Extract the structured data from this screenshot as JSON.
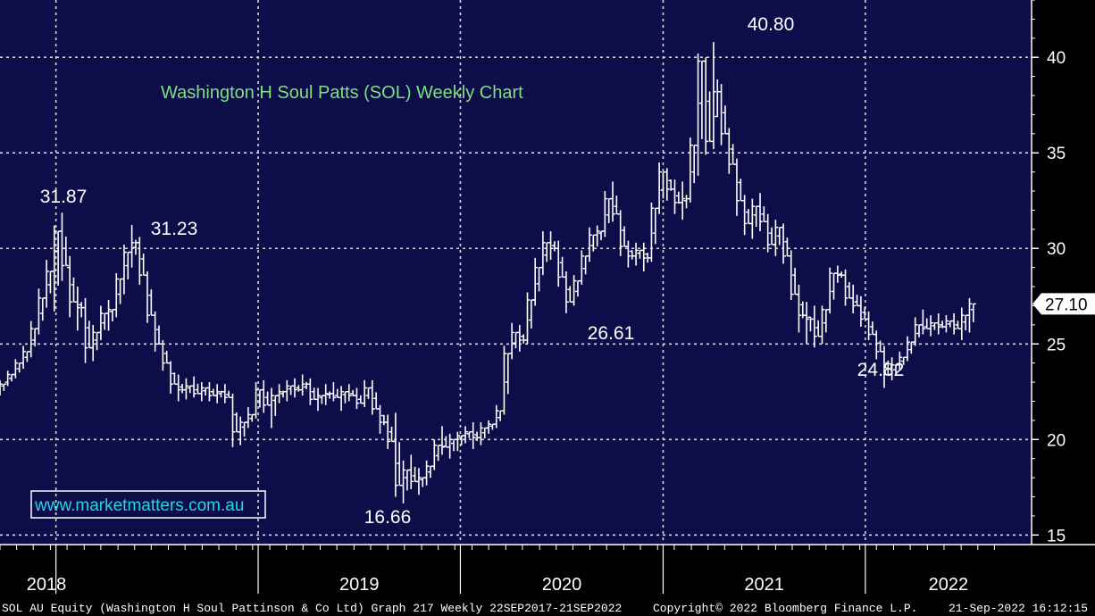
{
  "colors": {
    "plot_bg": "#0d0d4a",
    "grid": "#d8d8d8",
    "bars": "#ffffff",
    "title": "#7fe07f",
    "site": "#27d4e8",
    "axis_panel": "#000000"
  },
  "chart_data": {
    "type": "ohlc",
    "title": "Washington H Soul Patts (SOL) Weekly Chart",
    "xlabel": "",
    "ylabel": "",
    "x_start": "2017-09-22",
    "x_end": "2022-09-21",
    "ylim": [
      14.5,
      43
    ],
    "grid": true,
    "y_ticks": [
      15,
      20,
      25,
      30,
      35,
      40
    ],
    "x_years": [
      "2018",
      "2019",
      "2020",
      "2021",
      "2022"
    ],
    "year_starts": [
      "2018-01-01",
      "2019-01-01",
      "2020-01-01",
      "2021-01-01",
      "2022-01-01"
    ],
    "last_price": 27.1,
    "last_price_label": "27.10",
    "series": [
      {
        "values": [
          [
            "2017-09-22",
            22.7,
            23.1,
            22.3,
            22.9
          ],
          [
            "2017-10-06",
            23.0,
            23.6,
            22.8,
            23.4
          ],
          [
            "2017-10-20",
            23.4,
            24.2,
            23.2,
            24.0
          ],
          [
            "2017-11-03",
            24.0,
            24.9,
            23.7,
            24.6
          ],
          [
            "2017-11-17",
            24.6,
            26.2,
            24.3,
            25.8
          ],
          [
            "2017-12-01",
            25.8,
            27.9,
            25.5,
            27.4
          ],
          [
            "2017-12-15",
            27.4,
            29.4,
            26.9,
            28.8
          ],
          [
            "2017-12-29",
            28.8,
            31.2,
            26.7,
            30.9
          ],
          [
            "2018-01-12",
            30.9,
            31.87,
            28.3,
            29.1
          ],
          [
            "2018-01-26",
            29.0,
            29.6,
            26.4,
            27.2
          ],
          [
            "2018-02-09",
            27.2,
            28.0,
            25.7,
            26.9
          ],
          [
            "2018-02-23",
            26.9,
            27.4,
            24.0,
            24.8
          ],
          [
            "2018-03-09",
            24.8,
            26.0,
            24.1,
            25.6
          ],
          [
            "2018-03-23",
            25.6,
            27.0,
            25.2,
            26.6
          ],
          [
            "2018-04-06",
            26.6,
            27.3,
            25.7,
            26.8
          ],
          [
            "2018-04-20",
            26.8,
            28.7,
            26.4,
            28.4
          ],
          [
            "2018-05-04",
            28.4,
            30.2,
            27.6,
            29.8
          ],
          [
            "2018-05-18",
            29.8,
            31.23,
            29.0,
            30.3
          ],
          [
            "2018-06-01",
            30.3,
            30.6,
            28.1,
            28.6
          ],
          [
            "2018-06-15",
            28.6,
            28.8,
            26.1,
            26.5
          ],
          [
            "2018-06-29",
            26.5,
            26.7,
            24.6,
            25.0
          ],
          [
            "2018-07-13",
            25.0,
            25.2,
            23.6,
            24.0
          ],
          [
            "2018-07-27",
            24.0,
            24.1,
            22.4,
            22.9
          ],
          [
            "2018-08-10",
            22.9,
            23.4,
            22.0,
            22.6
          ],
          [
            "2018-08-24",
            22.6,
            23.2,
            22.1,
            22.8
          ],
          [
            "2018-09-07",
            22.8,
            23.3,
            22.2,
            22.4
          ],
          [
            "2018-09-21",
            22.4,
            23.0,
            22.0,
            22.7
          ],
          [
            "2018-10-05",
            22.7,
            23.0,
            22.0,
            22.3
          ],
          [
            "2018-10-19",
            22.3,
            22.9,
            21.9,
            22.5
          ],
          [
            "2018-11-02",
            22.5,
            22.9,
            21.9,
            22.2
          ],
          [
            "2018-11-16",
            22.2,
            22.4,
            19.6,
            20.4
          ],
          [
            "2018-11-30",
            20.4,
            21.2,
            19.7,
            20.9
          ],
          [
            "2018-12-14",
            20.9,
            21.7,
            20.6,
            21.3
          ],
          [
            "2018-12-28",
            21.3,
            23.0,
            21.1,
            22.6
          ],
          [
            "2019-01-11",
            22.6,
            23.1,
            21.4,
            21.8
          ],
          [
            "2019-01-25",
            21.8,
            22.7,
            20.6,
            22.3
          ],
          [
            "2019-02-08",
            22.3,
            22.9,
            21.9,
            22.5
          ],
          [
            "2019-02-22",
            22.5,
            23.1,
            22.0,
            22.8
          ],
          [
            "2019-03-08",
            22.8,
            23.2,
            22.2,
            22.6
          ],
          [
            "2019-03-22",
            22.6,
            23.4,
            22.3,
            22.9
          ],
          [
            "2019-04-05",
            22.9,
            23.2,
            21.8,
            22.1
          ],
          [
            "2019-04-19",
            22.1,
            22.7,
            21.5,
            22.3
          ],
          [
            "2019-05-03",
            22.3,
            22.9,
            21.8,
            22.4
          ],
          [
            "2019-05-17",
            22.4,
            23.0,
            22.0,
            22.2
          ],
          [
            "2019-05-31",
            22.2,
            22.8,
            21.5,
            22.5
          ],
          [
            "2019-06-14",
            22.5,
            22.9,
            22.0,
            22.3
          ],
          [
            "2019-06-28",
            22.3,
            22.7,
            21.6,
            21.9
          ],
          [
            "2019-07-12",
            21.9,
            23.1,
            21.7,
            22.7
          ],
          [
            "2019-07-26",
            22.7,
            23.1,
            21.3,
            21.6
          ],
          [
            "2019-08-09",
            21.6,
            21.8,
            20.3,
            20.9
          ],
          [
            "2019-08-23",
            20.9,
            21.3,
            19.5,
            19.9
          ],
          [
            "2019-09-06",
            19.9,
            21.4,
            17.0,
            17.6
          ],
          [
            "2019-09-20",
            17.6,
            18.9,
            16.66,
            18.4
          ],
          [
            "2019-10-04",
            18.4,
            19.2,
            17.4,
            17.8
          ],
          [
            "2019-10-18",
            17.8,
            18.5,
            17.1,
            18.0
          ],
          [
            "2019-11-01",
            18.0,
            18.9,
            17.6,
            18.6
          ],
          [
            "2019-11-15",
            18.6,
            20.0,
            18.4,
            19.7
          ],
          [
            "2019-11-29",
            19.7,
            20.7,
            19.2,
            19.6
          ],
          [
            "2019-12-13",
            19.6,
            20.3,
            19.0,
            20.0
          ],
          [
            "2019-12-27",
            20.0,
            20.4,
            19.4,
            20.2
          ],
          [
            "2020-01-10",
            20.2,
            20.7,
            19.8,
            20.4
          ],
          [
            "2020-01-24",
            20.4,
            20.9,
            19.5,
            20.1
          ],
          [
            "2020-02-07",
            20.1,
            20.9,
            19.7,
            20.6
          ],
          [
            "2020-02-21",
            20.6,
            21.0,
            20.3,
            20.8
          ],
          [
            "2020-03-06",
            20.8,
            21.8,
            20.6,
            21.5
          ],
          [
            "2020-03-20",
            21.5,
            24.9,
            21.3,
            24.5
          ],
          [
            "2020-04-03",
            24.5,
            26.1,
            24.2,
            25.6
          ],
          [
            "2020-04-17",
            25.6,
            26.0,
            24.6,
            25.2
          ],
          [
            "2020-05-01",
            25.2,
            27.7,
            25.0,
            27.3
          ],
          [
            "2020-05-15",
            27.3,
            29.5,
            27.0,
            29.0
          ],
          [
            "2020-05-29",
            29.0,
            30.9,
            28.6,
            30.3
          ],
          [
            "2020-06-12",
            30.3,
            30.9,
            29.4,
            30.0
          ],
          [
            "2020-06-26",
            30.0,
            30.4,
            28.0,
            28.5
          ],
          [
            "2020-07-10",
            28.5,
            28.8,
            26.61,
            27.2
          ],
          [
            "2020-07-24",
            27.2,
            28.6,
            27.0,
            28.3
          ],
          [
            "2020-08-07",
            28.3,
            29.9,
            28.1,
            29.6
          ],
          [
            "2020-08-21",
            29.6,
            31.1,
            29.3,
            30.7
          ],
          [
            "2020-09-04",
            30.7,
            31.2,
            30.1,
            30.9
          ],
          [
            "2020-09-18",
            30.9,
            33.0,
            30.6,
            32.6
          ],
          [
            "2020-10-02",
            32.6,
            33.5,
            31.4,
            31.8
          ],
          [
            "2020-10-16",
            31.8,
            32.0,
            29.6,
            30.1
          ],
          [
            "2020-10-30",
            30.1,
            30.4,
            29.0,
            29.6
          ],
          [
            "2020-11-13",
            29.6,
            30.3,
            29.1,
            29.9
          ],
          [
            "2020-11-27",
            29.9,
            30.3,
            28.8,
            29.5
          ],
          [
            "2020-12-11",
            29.5,
            32.4,
            29.3,
            32.1
          ],
          [
            "2020-12-25",
            32.1,
            34.5,
            31.8,
            34.0
          ],
          [
            "2021-01-08",
            34.0,
            34.2,
            32.5,
            33.1
          ],
          [
            "2021-01-22",
            33.1,
            33.6,
            31.8,
            32.4
          ],
          [
            "2021-02-05",
            32.4,
            33.5,
            31.5,
            32.6
          ],
          [
            "2021-02-19",
            32.6,
            35.8,
            32.4,
            35.4
          ],
          [
            "2021-03-05",
            35.4,
            40.2,
            33.8,
            39.8
          ],
          [
            "2021-03-19",
            39.8,
            40.0,
            34.9,
            35.6
          ],
          [
            "2021-04-02",
            35.6,
            40.8,
            35.2,
            38.2
          ],
          [
            "2021-04-16",
            38.2,
            38.6,
            35.4,
            36.0
          ],
          [
            "2021-04-30",
            36.0,
            36.3,
            33.9,
            34.4
          ],
          [
            "2021-05-14",
            34.4,
            34.7,
            31.7,
            32.5
          ],
          [
            "2021-05-28",
            32.5,
            32.8,
            30.7,
            31.3
          ],
          [
            "2021-06-11",
            31.3,
            32.6,
            30.5,
            32.2
          ],
          [
            "2021-06-25",
            32.2,
            32.9,
            30.9,
            31.4
          ],
          [
            "2021-07-09",
            31.4,
            31.8,
            29.8,
            30.2
          ],
          [
            "2021-07-23",
            30.2,
            31.5,
            29.6,
            31.1
          ],
          [
            "2021-08-06",
            31.1,
            31.3,
            29.2,
            29.6
          ],
          [
            "2021-08-20",
            29.6,
            29.9,
            27.3,
            27.6
          ],
          [
            "2021-09-03",
            27.6,
            28.1,
            25.6,
            26.5
          ],
          [
            "2021-09-17",
            26.5,
            27.2,
            25.0,
            26.3
          ],
          [
            "2021-10-01",
            26.3,
            27.0,
            24.82,
            25.4
          ],
          [
            "2021-10-15",
            25.4,
            27.0,
            25.0,
            26.8
          ],
          [
            "2021-10-29",
            26.8,
            29.0,
            26.6,
            28.7
          ],
          [
            "2021-11-12",
            28.7,
            29.1,
            28.2,
            28.6
          ],
          [
            "2021-11-26",
            28.6,
            28.9,
            27.0,
            27.4
          ],
          [
            "2021-12-10",
            27.4,
            28.1,
            26.6,
            27.0
          ],
          [
            "2021-12-24",
            27.0,
            27.5,
            25.9,
            26.3
          ],
          [
            "2022-01-07",
            26.3,
            26.7,
            25.2,
            25.5
          ],
          [
            "2022-01-21",
            25.5,
            25.7,
            24.2,
            24.6
          ],
          [
            "2022-02-04",
            24.6,
            24.9,
            22.7,
            23.4
          ],
          [
            "2022-02-18",
            23.4,
            24.3,
            23.1,
            23.9
          ],
          [
            "2022-03-04",
            23.9,
            24.6,
            23.6,
            24.3
          ],
          [
            "2022-03-18",
            24.3,
            25.4,
            24.1,
            25.1
          ],
          [
            "2022-04-01",
            25.1,
            26.4,
            24.9,
            26.0
          ],
          [
            "2022-04-15",
            26.0,
            26.8,
            25.5,
            25.8
          ],
          [
            "2022-04-29",
            25.8,
            26.5,
            25.4,
            26.1
          ],
          [
            "2022-05-13",
            26.1,
            26.6,
            25.5,
            25.9
          ],
          [
            "2022-05-27",
            25.9,
            26.5,
            25.6,
            26.2
          ],
          [
            "2022-06-10",
            26.2,
            26.6,
            25.5,
            25.8
          ],
          [
            "2022-06-24",
            25.8,
            26.9,
            25.2,
            26.5
          ],
          [
            "2022-07-08",
            26.5,
            27.4,
            25.6,
            27.1
          ]
        ]
      }
    ],
    "annotations": [
      {
        "label": "31.87"
      },
      {
        "label": "31.23"
      },
      {
        "label": "16.66"
      },
      {
        "label": "26.61"
      },
      {
        "label": "40.80"
      },
      {
        "label": "24.82"
      }
    ]
  },
  "watermark": {
    "text": "www.marketmatters.com.au"
  },
  "footer": {
    "left": "SOL AU Equity (Washington H Soul Pattinson & Co Ltd) Graph 217  Weekly 22SEP2017-21SEP2022",
    "center": "Copyright© 2022 Bloomberg Finance L.P.",
    "right": "21-Sep-2022 16:12:15"
  }
}
